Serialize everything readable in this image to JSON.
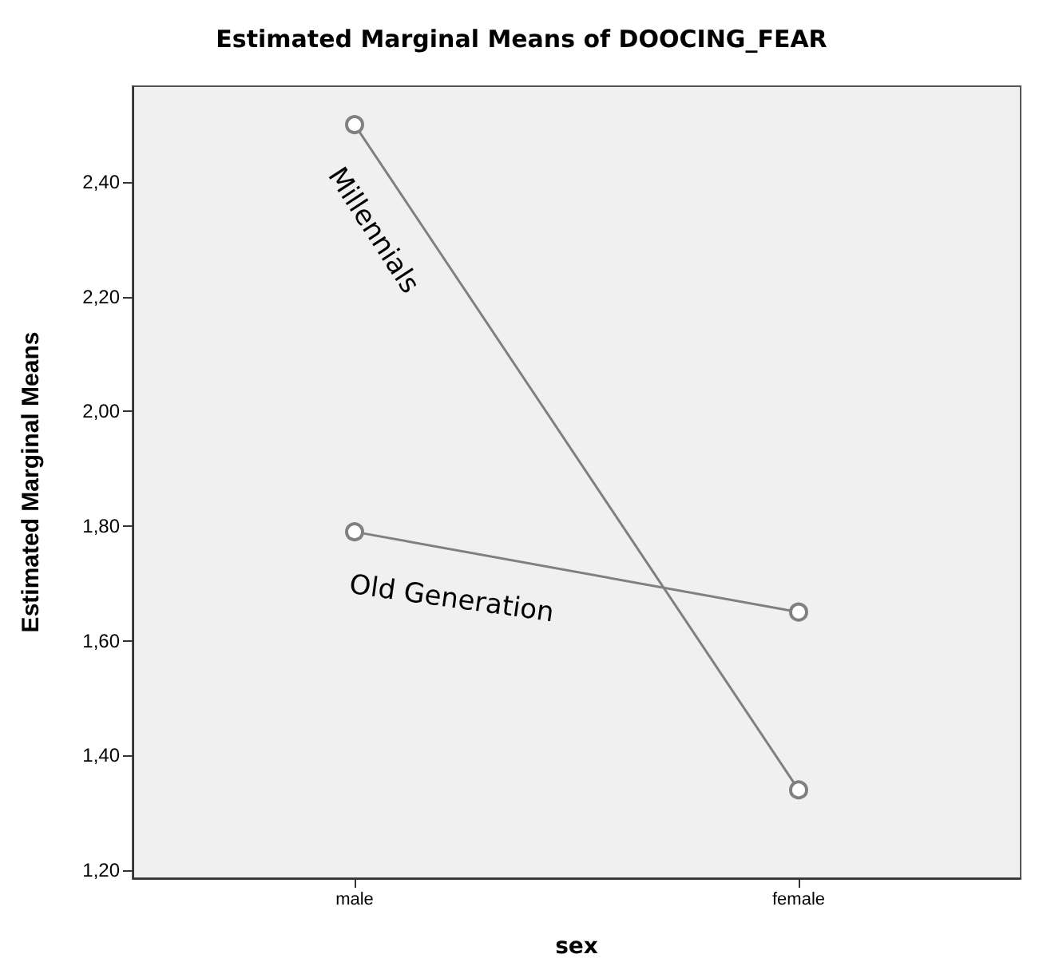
{
  "chart_data": {
    "type": "line",
    "title": "Estimated Marginal Means of DOOCING_FEAR",
    "xlabel": "sex",
    "ylabel": "Estimated Marginal Means",
    "categories": [
      "male",
      "female"
    ],
    "series": [
      {
        "name": "Millennials",
        "color": "#808080",
        "values": [
          2.5,
          1.34
        ]
      },
      {
        "name": "Old Generation",
        "color": "#808080",
        "values": [
          1.79,
          1.65
        ]
      }
    ],
    "ylim": [
      1.186,
      2.567
    ],
    "yticks": [
      {
        "value": 1.2,
        "label": "1,20"
      },
      {
        "value": 1.4,
        "label": "1,40"
      },
      {
        "value": 1.6,
        "label": "1,60"
      },
      {
        "value": 1.8,
        "label": "1,80"
      },
      {
        "value": 2.0,
        "label": "2,00"
      },
      {
        "value": 2.2,
        "label": "2,20"
      },
      {
        "value": 2.4,
        "label": "2,40"
      }
    ],
    "grid": false,
    "legend": false,
    "marker": "circle",
    "line_style": "solid"
  }
}
